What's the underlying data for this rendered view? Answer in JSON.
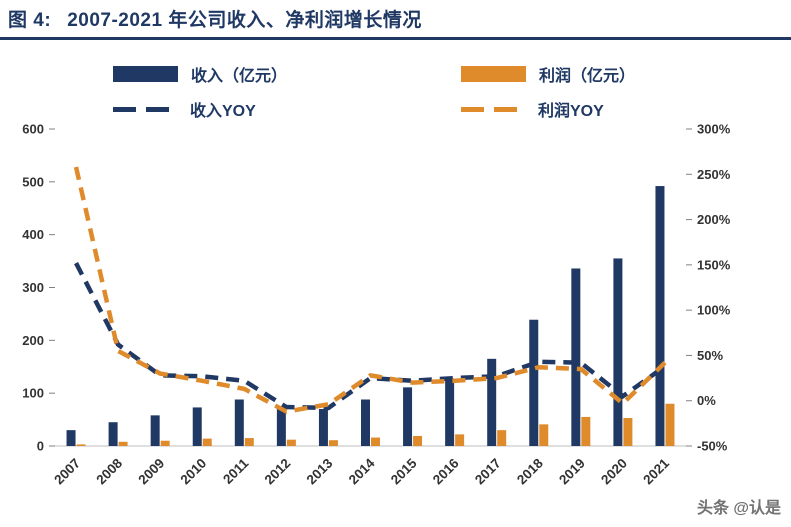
{
  "header": {
    "figure_label": "图  4:",
    "title": "2007-2021 年公司收入、净利润增长情况"
  },
  "legend": [
    {
      "label": "收入（亿元）",
      "type": "bar",
      "color": "#1F3864"
    },
    {
      "label": "利润（亿元）",
      "type": "bar",
      "color": "#DF8B2C"
    },
    {
      "label": "收入YOY",
      "type": "dash",
      "color": "#1F3864"
    },
    {
      "label": "利润YOY",
      "type": "dash",
      "color": "#DF8B2C"
    }
  ],
  "watermark": "头条 @认是",
  "chart_data": {
    "type": "bar",
    "subtype": "bars-with-dashed-yoy-lines",
    "title": "2007-2021 年公司收入、净利润增长情况",
    "categories": [
      "2007",
      "2008",
      "2009",
      "2010",
      "2011",
      "2012",
      "2013",
      "2014",
      "2015",
      "2016",
      "2017",
      "2018",
      "2019",
      "2020",
      "2021"
    ],
    "series": [
      {
        "name": "收入（亿元）",
        "type": "bar",
        "axis": "left",
        "color": "#1F3864",
        "dash": false,
        "values": [
          30,
          45,
          58,
          73,
          88,
          71,
          70,
          88,
          111,
          128,
          165,
          239,
          336,
          355,
          492
        ]
      },
      {
        "name": "利润（亿元）",
        "type": "bar",
        "axis": "left",
        "color": "#DF8B2C",
        "dash": false,
        "values": [
          3,
          8,
          10,
          14,
          15,
          12,
          11,
          16,
          19,
          22,
          30,
          41,
          55,
          53,
          80
        ]
      },
      {
        "name": "收入YOY",
        "type": "line",
        "axis": "right",
        "color": "#1F3864",
        "dash": true,
        "values": [
          152,
          62,
          28,
          27,
          22,
          -7,
          -8,
          25,
          22,
          25,
          27,
          43,
          42,
          5,
          38
        ]
      },
      {
        "name": "利润YOY",
        "type": "line",
        "axis": "right",
        "color": "#DF8B2C",
        "dash": true,
        "values": [
          258,
          55,
          30,
          22,
          13,
          -12,
          -4,
          28,
          20,
          22,
          25,
          37,
          35,
          -3,
          42
        ]
      }
    ],
    "left_axis": {
      "min": 0,
      "max": 600,
      "ticks": [
        0,
        100,
        200,
        300,
        400,
        500,
        600
      ]
    },
    "right_axis": {
      "min": -50,
      "max": 300,
      "tick_values": [
        -50,
        0,
        50,
        100,
        150,
        200,
        250,
        300
      ],
      "ticks": [
        "-50%",
        "0%",
        "50%",
        "100%",
        "150%",
        "200%",
        "250%",
        "300%"
      ]
    },
    "grid": false,
    "legend_position": "top"
  }
}
